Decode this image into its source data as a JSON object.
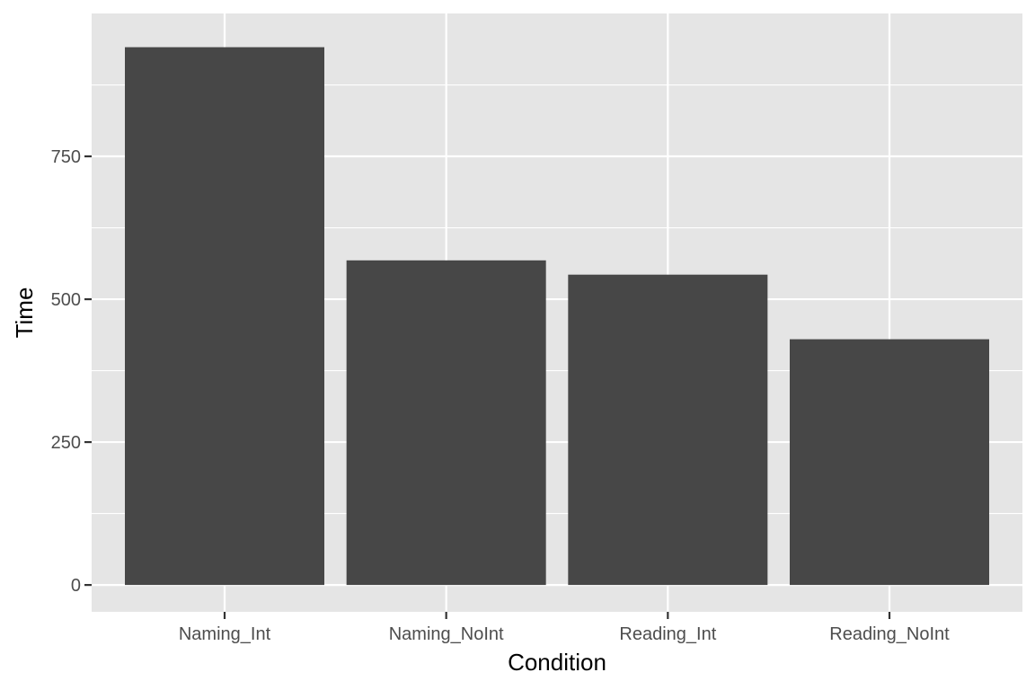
{
  "chart_data": {
    "type": "bar",
    "categories": [
      "Naming_Int",
      "Naming_NoInt",
      "Reading_Int",
      "Reading_NoInt"
    ],
    "values": [
      941,
      568,
      543,
      430
    ],
    "xlabel": "Condition",
    "ylabel": "Time",
    "ylim": [
      -47,
      1000
    ],
    "yticks": [
      0,
      250,
      500,
      750
    ],
    "ytick_labels": [
      "0",
      "250",
      "500",
      "750"
    ],
    "grid": true,
    "legend": "none"
  },
  "colors": {
    "panel_background": "#e5e5e5",
    "grid_major": "#ffffff",
    "bar_fill": "#474747",
    "tick_text": "#4d4d4d",
    "axis_title_text": "#000000"
  }
}
